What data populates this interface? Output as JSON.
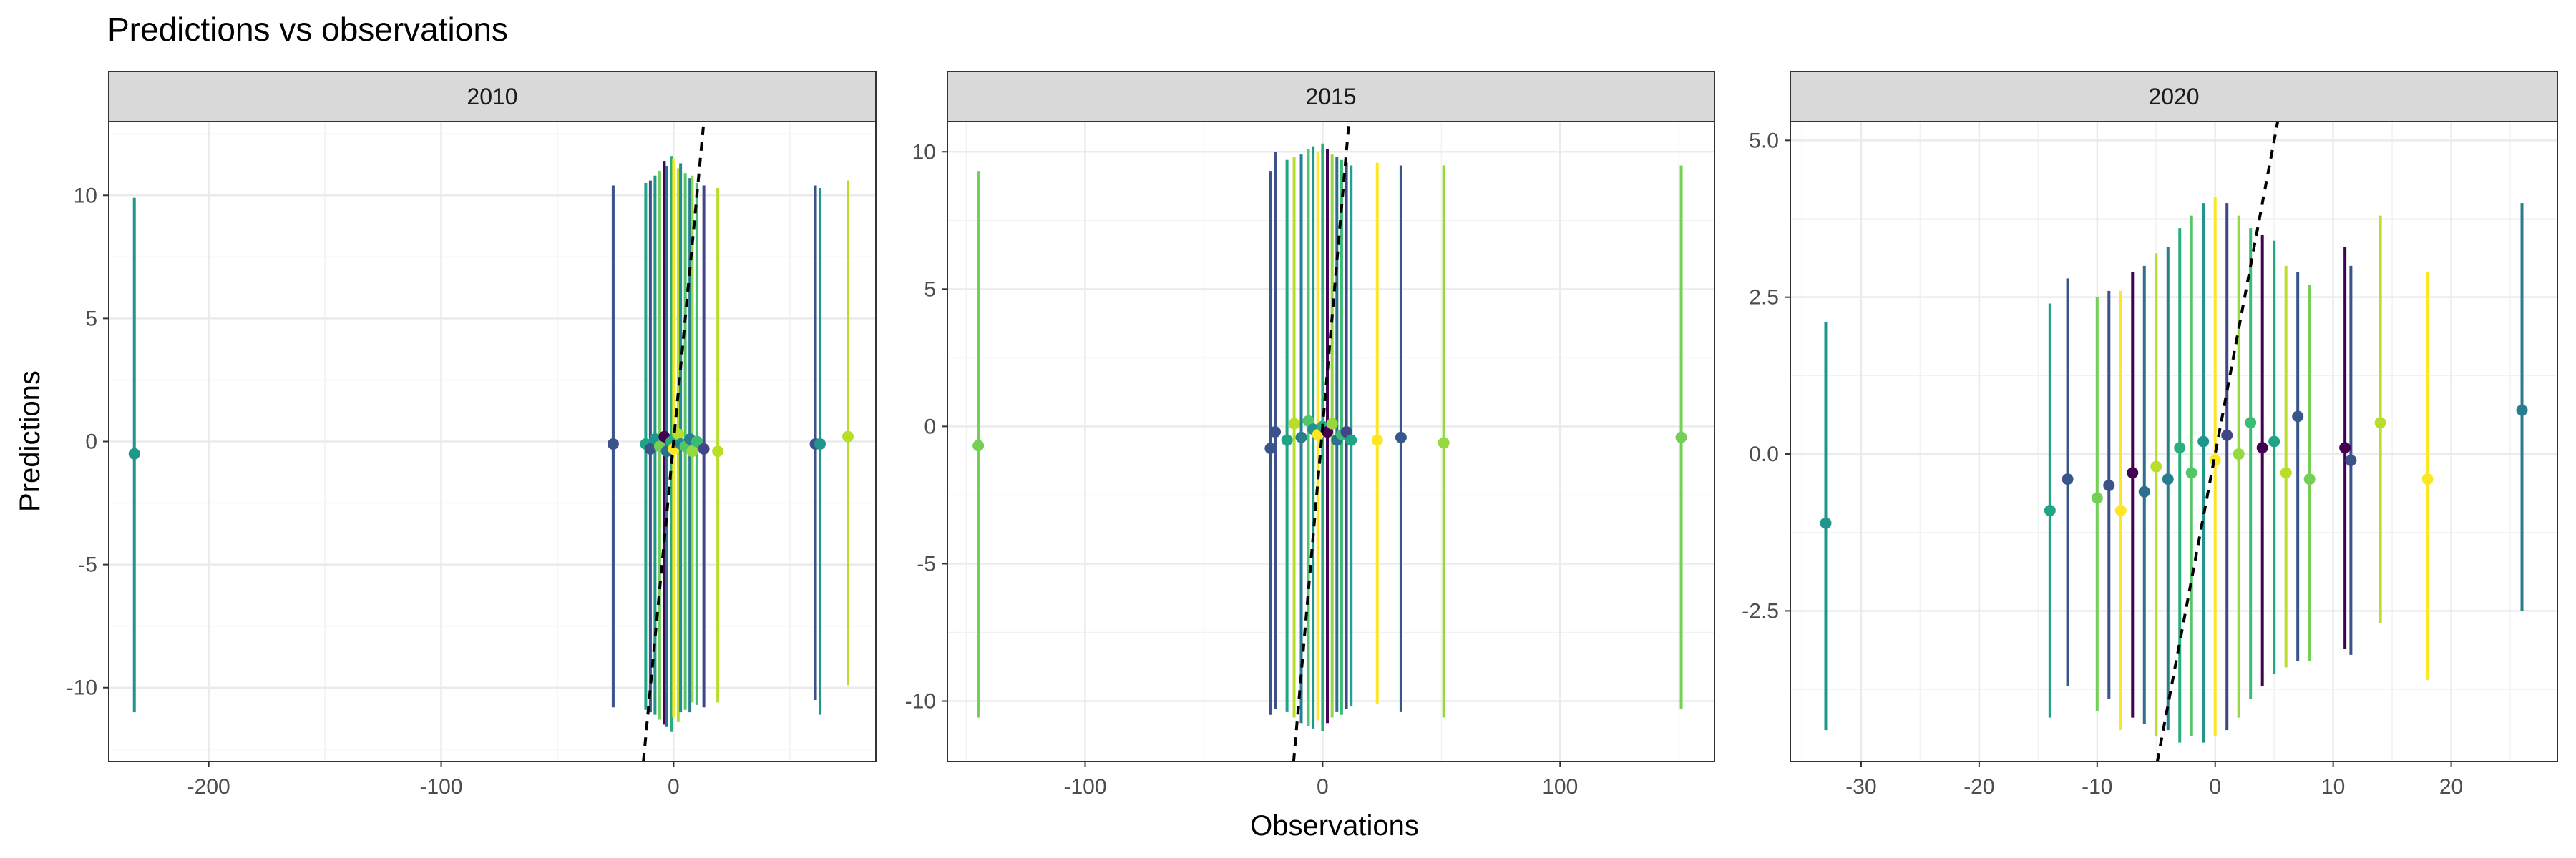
{
  "title": "Predictions vs observations",
  "chart_data": {
    "type": "scatter",
    "title": "Predictions vs observations",
    "xlabel": "Observations",
    "ylabel": "Predictions",
    "grid": true,
    "reference_line": "y = x (dashed)",
    "panels": [
      {
        "label": "2010",
        "xlim": [
          -243,
          87
        ],
        "ylim": [
          -13,
          13
        ],
        "xticks": [
          -200,
          -100,
          0
        ],
        "yticks": [
          -10,
          -5,
          0,
          5,
          10
        ],
        "xtick_labels": [
          "-200",
          "-100",
          "0"
        ],
        "ytick_labels": [
          "-10",
          "-5",
          "0",
          "5",
          "10"
        ],
        "points": [
          {
            "x": -232,
            "y": -0.5,
            "lo": -11.0,
            "hi": 9.9,
            "color": "#1f968b"
          },
          {
            "x": -26,
            "y": -0.1,
            "lo": -10.8,
            "hi": 10.4,
            "color": "#3b528b"
          },
          {
            "x": -12,
            "y": -0.1,
            "lo": -10.9,
            "hi": 10.5,
            "color": "#20a387"
          },
          {
            "x": -10,
            "y": -0.3,
            "lo": -11.0,
            "hi": 10.6,
            "color": "#3b528b"
          },
          {
            "x": -8,
            "y": 0.1,
            "lo": -11.1,
            "hi": 10.8,
            "color": "#1f968b"
          },
          {
            "x": -6,
            "y": -0.2,
            "lo": -11.3,
            "hi": 11.0,
            "color": "#73d055"
          },
          {
            "x": -4,
            "y": 0.2,
            "lo": -11.5,
            "hi": 11.4,
            "color": "#440154"
          },
          {
            "x": -3,
            "y": -0.4,
            "lo": -11.6,
            "hi": 11.2,
            "color": "#2d708e"
          },
          {
            "x": -1,
            "y": 0.0,
            "lo": -11.8,
            "hi": 11.6,
            "color": "#29af7f"
          },
          {
            "x": 0,
            "y": -0.3,
            "lo": -11.2,
            "hi": 11.5,
            "color": "#fde725"
          },
          {
            "x": 2,
            "y": 0.3,
            "lo": -11.4,
            "hi": 11.1,
            "color": "#b8de29"
          },
          {
            "x": 3,
            "y": -0.1,
            "lo": -11.0,
            "hi": 11.3,
            "color": "#238a8d"
          },
          {
            "x": 5,
            "y": -0.2,
            "lo": -10.9,
            "hi": 10.9,
            "color": "#55c667"
          },
          {
            "x": 7,
            "y": 0.1,
            "lo": -11.0,
            "hi": 10.7,
            "color": "#287d8e"
          },
          {
            "x": 8,
            "y": -0.4,
            "lo": -10.6,
            "hi": 10.8,
            "color": "#95d840"
          },
          {
            "x": 10,
            "y": 0.0,
            "lo": -10.7,
            "hi": 10.5,
            "color": "#3cbb75"
          },
          {
            "x": 13,
            "y": -0.3,
            "lo": -10.8,
            "hi": 10.4,
            "color": "#404688"
          },
          {
            "x": 19,
            "y": -0.4,
            "lo": -10.6,
            "hi": 10.3,
            "color": "#b8de29"
          },
          {
            "x": 61,
            "y": -0.1,
            "lo": -10.5,
            "hi": 10.4,
            "color": "#3b528b"
          },
          {
            "x": 63,
            "y": -0.1,
            "lo": -11.1,
            "hi": 10.3,
            "color": "#1f968b"
          },
          {
            "x": 75,
            "y": 0.2,
            "lo": -9.9,
            "hi": 10.6,
            "color": "#b8de29"
          }
        ]
      },
      {
        "label": "2015",
        "xlim": [
          -158,
          165
        ],
        "ylim": [
          -12.2,
          11.1
        ],
        "xticks": [
          -100,
          0,
          100
        ],
        "yticks": [
          -10,
          -5,
          0,
          5,
          10
        ],
        "xtick_labels": [
          "-100",
          "0",
          "100"
        ],
        "ytick_labels": [
          "-10",
          "-5",
          "0",
          "5",
          "10"
        ],
        "points": [
          {
            "x": -145,
            "y": -0.7,
            "lo": -10.6,
            "hi": 9.3,
            "color": "#73d055"
          },
          {
            "x": -22,
            "y": -0.8,
            "lo": -10.5,
            "hi": 9.3,
            "color": "#39568c"
          },
          {
            "x": -20,
            "y": -0.2,
            "lo": -10.3,
            "hi": 10.0,
            "color": "#3b528b"
          },
          {
            "x": -15,
            "y": -0.5,
            "lo": -10.4,
            "hi": 9.7,
            "color": "#20a387"
          },
          {
            "x": -12,
            "y": 0.1,
            "lo": -10.6,
            "hi": 9.8,
            "color": "#b8de29"
          },
          {
            "x": -9,
            "y": -0.4,
            "lo": -10.8,
            "hi": 9.9,
            "color": "#287d8e"
          },
          {
            "x": -6,
            "y": 0.2,
            "lo": -10.9,
            "hi": 10.1,
            "color": "#55c667"
          },
          {
            "x": -4,
            "y": -0.1,
            "lo": -11.0,
            "hi": 10.2,
            "color": "#1f968b"
          },
          {
            "x": -2,
            "y": -0.3,
            "lo": -10.7,
            "hi": 10.0,
            "color": "#fde725"
          },
          {
            "x": 0,
            "y": 0.0,
            "lo": -11.1,
            "hi": 10.3,
            "color": "#29af7f"
          },
          {
            "x": 2,
            "y": -0.2,
            "lo": -10.8,
            "hi": 10.1,
            "color": "#440154"
          },
          {
            "x": 4,
            "y": 0.1,
            "lo": -10.6,
            "hi": 9.9,
            "color": "#95d840"
          },
          {
            "x": 6,
            "y": -0.5,
            "lo": -10.4,
            "hi": 9.8,
            "color": "#2d708e"
          },
          {
            "x": 8,
            "y": -0.3,
            "lo": -10.5,
            "hi": 9.7,
            "color": "#3cbb75"
          },
          {
            "x": 10,
            "y": -0.2,
            "lo": -10.3,
            "hi": 9.6,
            "color": "#404688"
          },
          {
            "x": 12,
            "y": -0.5,
            "lo": -10.2,
            "hi": 9.5,
            "color": "#20a387"
          },
          {
            "x": 23,
            "y": -0.5,
            "lo": -10.1,
            "hi": 9.6,
            "color": "#fde725"
          },
          {
            "x": 33,
            "y": -0.4,
            "lo": -10.4,
            "hi": 9.5,
            "color": "#39568c"
          },
          {
            "x": 51,
            "y": -0.6,
            "lo": -10.6,
            "hi": 9.5,
            "color": "#95d840"
          },
          {
            "x": 151,
            "y": -0.4,
            "lo": -10.3,
            "hi": 9.5,
            "color": "#73d055"
          }
        ]
      },
      {
        "label": "2020",
        "xlim": [
          -36,
          29
        ],
        "ylim": [
          -4.9,
          5.3
        ],
        "xticks": [
          -30,
          -20,
          -10,
          0,
          10,
          20
        ],
        "yticks": [
          -2.5,
          0.0,
          2.5,
          5.0
        ],
        "xtick_labels": [
          "-30",
          "-20",
          "-10",
          "0",
          "10",
          "20"
        ],
        "ytick_labels": [
          "-2.5",
          "0.0",
          "2.5",
          "5.0"
        ],
        "points": [
          {
            "x": -33,
            "y": -1.1,
            "lo": -4.4,
            "hi": 2.1,
            "color": "#1f968b"
          },
          {
            "x": -14,
            "y": -0.9,
            "lo": -4.2,
            "hi": 2.4,
            "color": "#20a387"
          },
          {
            "x": -12.5,
            "y": -0.4,
            "lo": -3.7,
            "hi": 2.8,
            "color": "#39568c"
          },
          {
            "x": -10,
            "y": -0.7,
            "lo": -4.1,
            "hi": 2.5,
            "color": "#73d055"
          },
          {
            "x": -9,
            "y": -0.5,
            "lo": -3.9,
            "hi": 2.6,
            "color": "#3b528b"
          },
          {
            "x": -8,
            "y": -0.9,
            "lo": -4.4,
            "hi": 2.6,
            "color": "#fde725"
          },
          {
            "x": -7,
            "y": -0.3,
            "lo": -4.2,
            "hi": 2.9,
            "color": "#440154"
          },
          {
            "x": -6,
            "y": -0.6,
            "lo": -4.3,
            "hi": 3.0,
            "color": "#2d708e"
          },
          {
            "x": -5,
            "y": -0.2,
            "lo": -4.5,
            "hi": 3.2,
            "color": "#b8de29"
          },
          {
            "x": -4,
            "y": -0.4,
            "lo": -4.4,
            "hi": 3.3,
            "color": "#287d8e"
          },
          {
            "x": -3,
            "y": 0.1,
            "lo": -4.6,
            "hi": 3.6,
            "color": "#29af7f"
          },
          {
            "x": -2,
            "y": -0.3,
            "lo": -4.5,
            "hi": 3.8,
            "color": "#55c667"
          },
          {
            "x": -1,
            "y": 0.2,
            "lo": -4.6,
            "hi": 4.0,
            "color": "#1f968b"
          },
          {
            "x": 0,
            "y": -0.1,
            "lo": -4.5,
            "hi": 4.1,
            "color": "#fde725"
          },
          {
            "x": 1,
            "y": 0.3,
            "lo": -4.4,
            "hi": 4.0,
            "color": "#404688"
          },
          {
            "x": 2,
            "y": 0.0,
            "lo": -4.2,
            "hi": 3.8,
            "color": "#95d840"
          },
          {
            "x": 3,
            "y": 0.5,
            "lo": -3.9,
            "hi": 3.6,
            "color": "#3cbb75"
          },
          {
            "x": 4,
            "y": 0.1,
            "lo": -3.7,
            "hi": 3.5,
            "color": "#440154"
          },
          {
            "x": 5,
            "y": 0.2,
            "lo": -3.5,
            "hi": 3.4,
            "color": "#20a387"
          },
          {
            "x": 6,
            "y": -0.3,
            "lo": -3.4,
            "hi": 3.0,
            "color": "#b8de29"
          },
          {
            "x": 7,
            "y": 0.6,
            "lo": -3.3,
            "hi": 2.9,
            "color": "#39568c"
          },
          {
            "x": 8,
            "y": -0.4,
            "lo": -3.3,
            "hi": 2.7,
            "color": "#73d055"
          },
          {
            "x": 11,
            "y": 0.1,
            "lo": -3.1,
            "hi": 3.3,
            "color": "#440154"
          },
          {
            "x": 11.5,
            "y": -0.1,
            "lo": -3.2,
            "hi": 3.0,
            "color": "#3b528b"
          },
          {
            "x": 14,
            "y": 0.5,
            "lo": -2.7,
            "hi": 3.8,
            "color": "#b8de29"
          },
          {
            "x": 18,
            "y": -0.4,
            "lo": -3.6,
            "hi": 2.9,
            "color": "#fde725"
          },
          {
            "x": 26,
            "y": 0.7,
            "lo": -2.5,
            "hi": 4.0,
            "color": "#287d8e"
          }
        ]
      }
    ]
  }
}
